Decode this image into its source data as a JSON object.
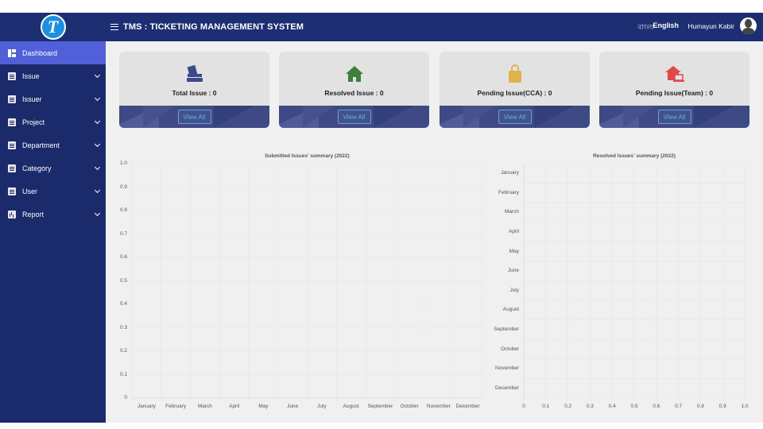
{
  "header": {
    "title": "TMS : TICKETING MANAGEMENT SYSTEM",
    "lang_bn": "বাংলা",
    "lang_en": "English",
    "user_name": "Humayun Kabir"
  },
  "sidebar": {
    "logo_letter": "T",
    "items": [
      {
        "label": "Dashboard",
        "icon": "dashboard-icon",
        "active": true
      },
      {
        "label": "Issue",
        "icon": "document-icon"
      },
      {
        "label": "Issuer",
        "icon": "document-icon"
      },
      {
        "label": "Project",
        "icon": "document-icon"
      },
      {
        "label": "Department",
        "icon": "document-icon"
      },
      {
        "label": "Category",
        "icon": "document-icon"
      },
      {
        "label": "User",
        "icon": "document-icon"
      },
      {
        "label": "Report",
        "icon": "report-icon"
      }
    ]
  },
  "cards": [
    {
      "label": "Total Issue :  0",
      "button": "View All",
      "icon": "inbox-tray-icon",
      "icon_color": "#3b4a8a"
    },
    {
      "label": "Resolved Issue :  0",
      "button": "View All",
      "icon": "home-icon",
      "icon_color": "#3e7f3a"
    },
    {
      "label": "Pending Issue(CCA) :  0",
      "button": "View All",
      "icon": "shopping-bag-icon",
      "icon_color": "#e0b34a"
    },
    {
      "label": "Pending Issue(Team) :  0",
      "button": "View All",
      "icon": "house-laptop-icon",
      "icon_color": "#e04848"
    }
  ],
  "chart_data": [
    {
      "type": "bar",
      "title": "Submitted Issues' summary (2022)",
      "categories": [
        "January",
        "February",
        "March",
        "April",
        "May",
        "June",
        "July",
        "August",
        "September",
        "October",
        "November",
        "December"
      ],
      "values": [
        0,
        0,
        0,
        0,
        0,
        0,
        0,
        0,
        0,
        0,
        0,
        0
      ],
      "y_ticks": [
        "1.0",
        "0.9",
        "0.8",
        "0.7",
        "0.6",
        "0.5",
        "0.4",
        "0.3",
        "0.2",
        "0.1",
        "0"
      ],
      "ylim": [
        0,
        1
      ],
      "grid": true
    },
    {
      "type": "bar",
      "orientation": "horizontal",
      "title": "Resolved Issues' summary (2022)",
      "categories": [
        "January",
        "February",
        "March",
        "April",
        "May",
        "June",
        "July",
        "August",
        "September",
        "October",
        "November",
        "December"
      ],
      "values": [
        0,
        0,
        0,
        0,
        0,
        0,
        0,
        0,
        0,
        0,
        0,
        0
      ],
      "x_ticks": [
        "0",
        "0.1",
        "0.2",
        "0.3",
        "0.4",
        "0.5",
        "0.6",
        "0.7",
        "0.8",
        "0.9",
        "1.0"
      ],
      "xlim": [
        0,
        1
      ],
      "grid": true
    }
  ]
}
